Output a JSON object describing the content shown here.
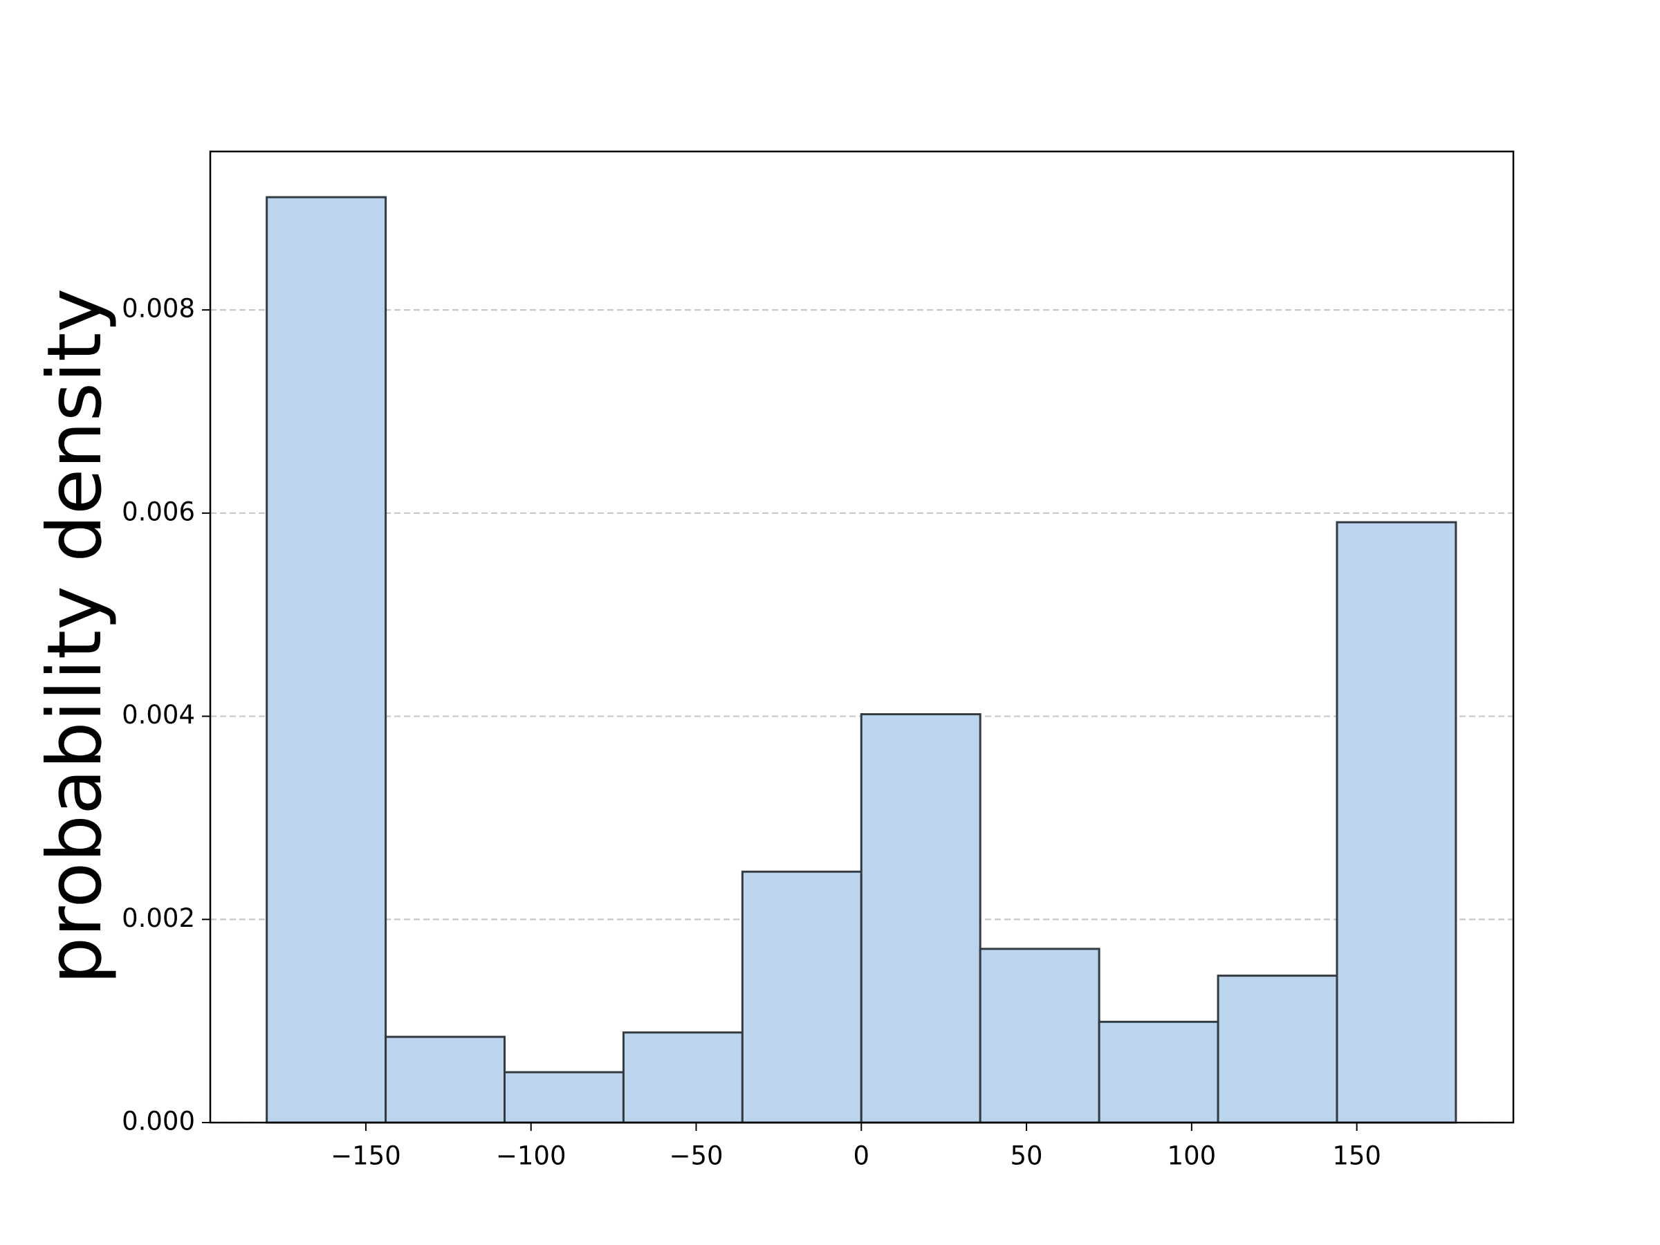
{
  "chart_data": {
    "type": "histogram",
    "y_label": "probability density",
    "bins": [
      -180,
      -144,
      -108,
      -72,
      -36,
      0,
      36,
      72,
      108,
      144,
      180
    ],
    "values": [
      0.00911,
      0.000844,
      0.000496,
      0.000887,
      0.00247,
      0.00402,
      0.00171,
      0.000992,
      0.001446,
      0.00591
    ],
    "color": "#bcd5ee",
    "edgecolor": "#333a40",
    "xlim": [
      -197.1,
      197.4
    ],
    "ylim": [
      0,
      0.00956
    ],
    "xticks": [
      {
        "value": -150,
        "label": "−150"
      },
      {
        "value": -100,
        "label": "−100"
      },
      {
        "value": -50,
        "label": "−50"
      },
      0,
      50,
      100,
      150
    ],
    "yticks": [
      {
        "value": 0,
        "label": "0.000"
      },
      {
        "value": 0.002,
        "label": "0.002"
      },
      {
        "value": 0.004,
        "label": "0.004"
      },
      {
        "value": 0.006,
        "label": "0.006"
      },
      {
        "value": 0.008,
        "label": "0.008"
      }
    ],
    "grid": true
  }
}
